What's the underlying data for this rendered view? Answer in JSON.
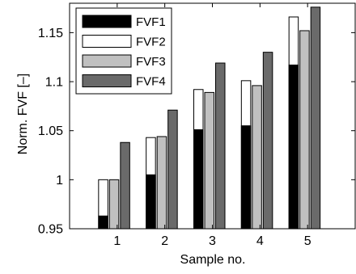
{
  "chart_data": {
    "type": "bar",
    "title": "",
    "xlabel": "Sample no.",
    "ylabel": "Norm. FVF [–]",
    "categories": [
      "1",
      "2",
      "3",
      "4",
      "5"
    ],
    "ylim": [
      0.95,
      1.18
    ],
    "xlim": [
      0,
      6
    ],
    "yticks": [
      0.95,
      1,
      1.05,
      1.1,
      1.15
    ],
    "ytick_labels": [
      "0.95",
      "1",
      "1.05",
      "1.1",
      "1.15"
    ],
    "grid": false,
    "legend_position": "top-left",
    "stacked_overlay": "FVF1 is drawn in front of FVF2 in the first column of each group",
    "series": [
      {
        "name": "FVF1",
        "color": "#000000",
        "values": [
          0.963,
          1.005,
          1.051,
          1.055,
          1.117
        ]
      },
      {
        "name": "FVF2",
        "color": "#ffffff",
        "values": [
          1.0,
          1.043,
          1.092,
          1.101,
          1.166
        ]
      },
      {
        "name": "FVF3",
        "color": "#c0c0c0",
        "values": [
          1.0,
          1.044,
          1.089,
          1.096,
          1.152
        ]
      },
      {
        "name": "FVF4",
        "color": "#6a6a6a",
        "values": [
          1.038,
          1.071,
          1.119,
          1.13,
          1.176
        ]
      }
    ]
  }
}
